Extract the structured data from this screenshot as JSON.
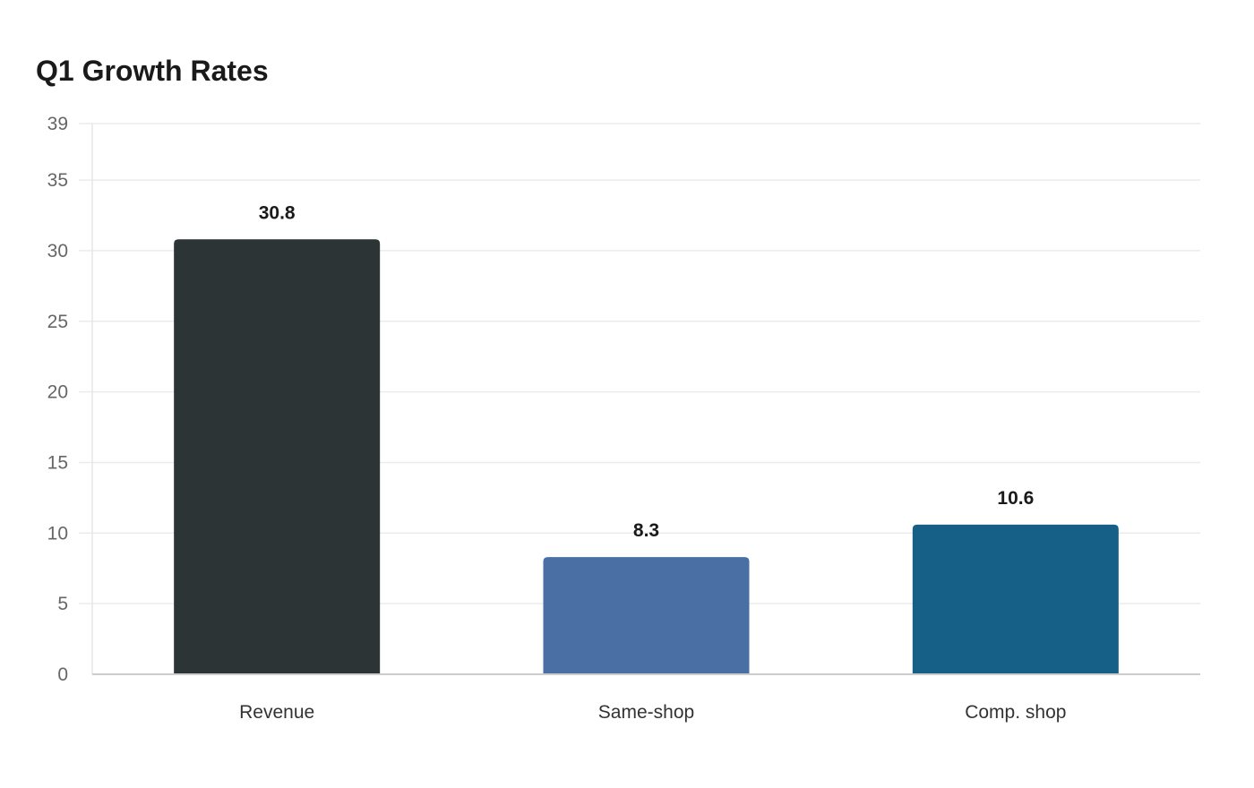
{
  "chart_data": {
    "type": "bar",
    "title": "Q1 Growth Rates",
    "xlabel": "",
    "ylabel": "",
    "categories": [
      "Revenue",
      "Same-shop",
      "Comp. shop"
    ],
    "values": [
      30.8,
      8.3,
      10.6
    ],
    "data_labels": [
      "30.8",
      "8.3",
      "10.6"
    ],
    "colors": [
      "#2d3436",
      "#4a6fa5",
      "#166088"
    ],
    "ylim": [
      0,
      39
    ],
    "yticks": [
      0,
      5,
      10,
      15,
      20,
      25,
      30,
      35,
      39
    ],
    "grid": true,
    "legend": "none"
  }
}
